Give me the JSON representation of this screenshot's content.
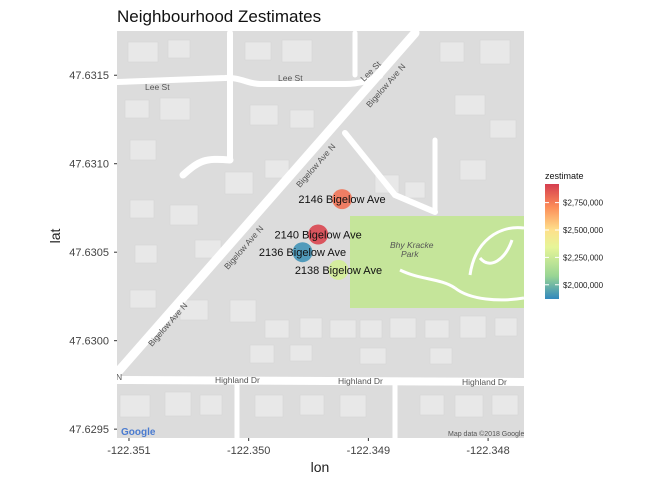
{
  "chart_data": {
    "type": "scatter",
    "title": "Neighbourhood Zestimates",
    "xlabel": "lon",
    "ylabel": "lat",
    "xlim": [
      -122.3511,
      -122.3477
    ],
    "ylim": [
      -47.62945,
      47.63175
    ],
    "x_ticks": [
      {
        "value": -122.351,
        "label": "-122.351"
      },
      {
        "value": -122.35,
        "label": "-122.350"
      },
      {
        "value": -122.349,
        "label": "-122.349"
      },
      {
        "value": -122.348,
        "label": "-122.348"
      }
    ],
    "y_ticks": [
      {
        "value": 47.6295,
        "label": "47.6295"
      },
      {
        "value": 47.63,
        "label": "47.6300"
      },
      {
        "value": 47.6305,
        "label": "47.6305"
      },
      {
        "value": 47.631,
        "label": "47.6310"
      },
      {
        "value": 47.6315,
        "label": "47.6315"
      }
    ],
    "points": [
      {
        "label": "2146 Bigelow Ave",
        "lon": -122.34922,
        "lat": 47.6308,
        "zestimate": 2780000
      },
      {
        "label": "2140 Bigelow Ave",
        "lon": -122.34942,
        "lat": 47.6306,
        "zestimate": 2900000
      },
      {
        "label": "2136 Bigelow Ave",
        "lon": -122.34955,
        "lat": 47.6305,
        "zestimate": 1900000
      },
      {
        "label": "2138 Bigelow Ave",
        "lon": -122.34925,
        "lat": 47.6304,
        "zestimate": 2280000
      }
    ],
    "legend": {
      "title": "zestimate",
      "placement": "right",
      "min": 1870000,
      "max": 2920000,
      "breaks": [
        {
          "value": 2000000,
          "label": "$2,000,000"
        },
        {
          "value": 2250000,
          "label": "$2,250,000"
        },
        {
          "value": 2500000,
          "label": "$2,500,000"
        },
        {
          "value": 2750000,
          "label": "$2,750,000"
        }
      ],
      "palette": "Spectral (reversed)",
      "colors": [
        "#3288bd",
        "#99d594",
        "#e6f598",
        "#fee08b",
        "#fc8d59",
        "#d53e4f"
      ]
    },
    "grid": false
  },
  "map": {
    "roads": {
      "bigelow_1": "Bigelow Ave N",
      "bigelow_2": "Bigelow Ave N",
      "bigelow_3": "Bigelow Ave N",
      "bigelow_4": "Bigelow Ave N",
      "lee_1": "Lee St",
      "lee_2": "Lee St",
      "lee_3": "Lee St",
      "highland_1": "Highland Dr",
      "highland_2": "Highland Dr",
      "highland_3": "Highland Dr",
      "edge_n": "N"
    },
    "park_name_1": "Bhy Kracke",
    "park_name_2": "Park",
    "logo": "Google",
    "credit": "Map data ©2018 Google",
    "colors": {
      "land": "#dcdcdc",
      "road": "#ffffff",
      "building": "#e8e8e8",
      "park": "#c5e59a"
    }
  }
}
